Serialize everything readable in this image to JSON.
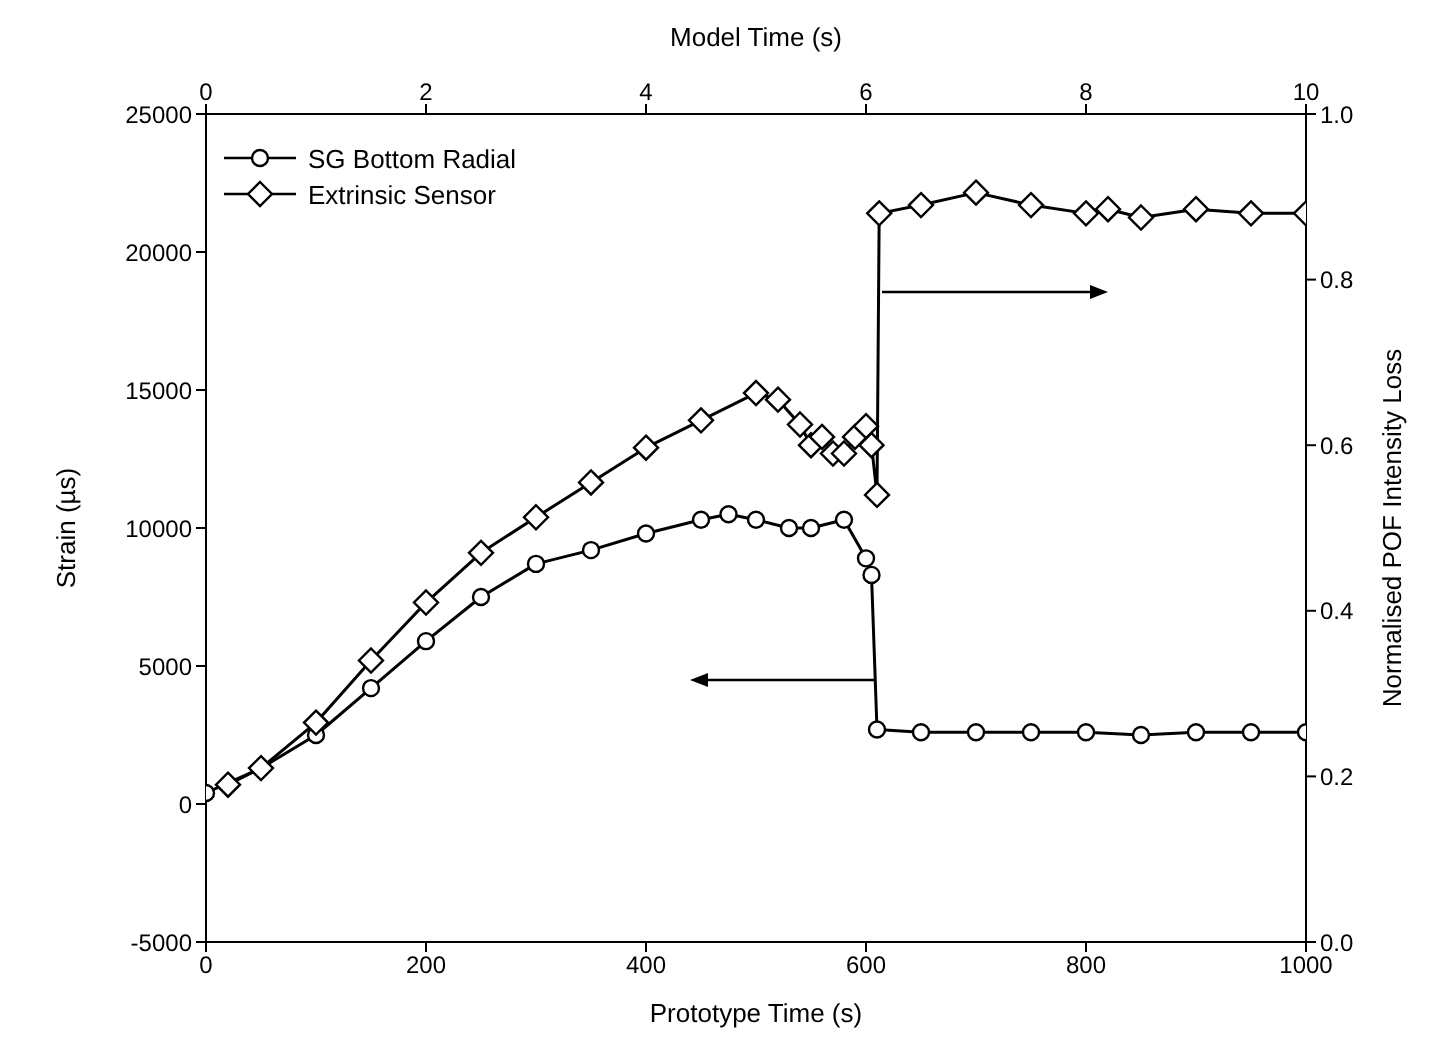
{
  "chart_data": {
    "type": "line",
    "xlabel": "Prototype Time (s)",
    "ylabel": "Strain (µs)",
    "y2label": "Normalised POF Intensity Loss",
    "x2label": "Model Time (s)",
    "xlim": [
      0,
      1000
    ],
    "xticks": [
      0,
      200,
      400,
      600,
      800,
      1000
    ],
    "x2lim": [
      0,
      10
    ],
    "x2ticks": [
      0,
      2,
      4,
      6,
      8,
      10
    ],
    "ylim": [
      -5000,
      25000
    ],
    "yticks": [
      -5000,
      0,
      5000,
      10000,
      15000,
      20000,
      25000
    ],
    "y2lim": [
      0,
      1
    ],
    "y2ticks": [
      {
        "value": 0,
        "label": "0.0"
      },
      {
        "value": 0.2,
        "label": "0.2"
      },
      {
        "value": 0.4,
        "label": "0.4"
      },
      {
        "value": 0.6,
        "label": "0.6"
      },
      {
        "value": 0.8,
        "label": "0.8"
      },
      {
        "value": 1,
        "label": "1.0"
      }
    ],
    "grid": false,
    "legend": "top left",
    "line_style": "solid",
    "series": [
      {
        "name": "SG Bottom Radial",
        "color": "#000000",
        "marker": "circle",
        "x": [
          0,
          50,
          100,
          150,
          200,
          250,
          300,
          350,
          400,
          450,
          475,
          500,
          530,
          550,
          580,
          600,
          605,
          610,
          650,
          700,
          750,
          800,
          850,
          900,
          950,
          1000
        ],
        "values": [
          400,
          1300,
          2500,
          4200,
          5900,
          7500,
          8700,
          9200,
          9800,
          10300,
          10500,
          10300,
          10000,
          10000,
          10300,
          8900,
          8300,
          2700,
          2600,
          2600,
          2600,
          2600,
          2500,
          2600,
          2600,
          2600
        ]
      },
      {
        "name": "Extrinsic Sensor",
        "color": "#000000",
        "marker": "diamond",
        "axis": "y2",
        "x": [
          20,
          50,
          100,
          150,
          200,
          250,
          300,
          350,
          400,
          450,
          500,
          520,
          540,
          550,
          560,
          570,
          580,
          590,
          600,
          605,
          610,
          612,
          650,
          700,
          750,
          800,
          820,
          850,
          900,
          950,
          1000
        ],
        "values": [
          0.19,
          0.21,
          0.265,
          0.34,
          0.41,
          0.47,
          0.513,
          0.555,
          0.597,
          0.63,
          0.663,
          0.655,
          0.625,
          0.6,
          0.61,
          0.59,
          0.59,
          0.61,
          0.623,
          0.6,
          0.54,
          0.88,
          0.89,
          0.905,
          0.89,
          0.88,
          0.885,
          0.875,
          0.885,
          0.88,
          0.88
        ]
      }
    ]
  }
}
